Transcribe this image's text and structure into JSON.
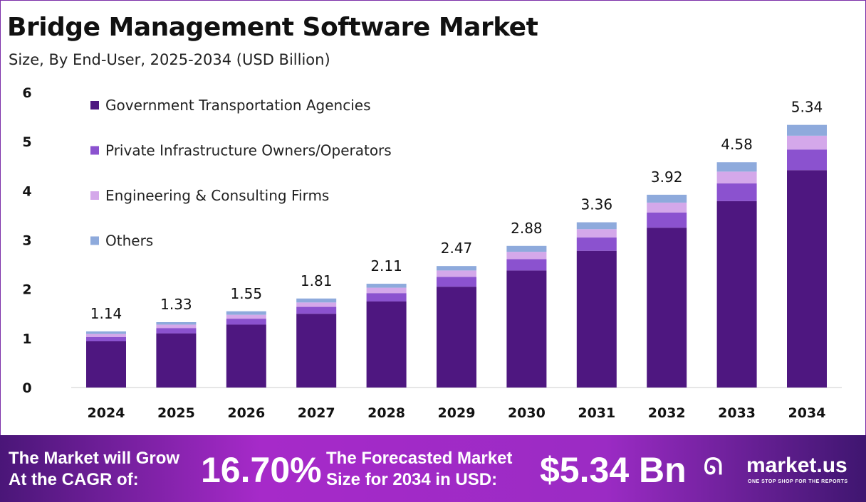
{
  "title": "Bridge Management Software Market",
  "subtitle": "Size, By End-User, 2025-2034 (USD Billion)",
  "chart_data": {
    "type": "bar",
    "stacked": true,
    "categories": [
      "2024",
      "2025",
      "2026",
      "2027",
      "2028",
      "2029",
      "2030",
      "2031",
      "2032",
      "2033",
      "2034"
    ],
    "totals": [
      "1.14",
      "1.33",
      "1.55",
      "1.81",
      "2.11",
      "2.47",
      "2.88",
      "3.36",
      "3.92",
      "4.58",
      "5.34"
    ],
    "series": [
      {
        "name": "Government Transportation Agencies",
        "color": "#4e1780",
        "values": [
          0.94,
          1.1,
          1.28,
          1.5,
          1.75,
          2.05,
          2.38,
          2.78,
          3.25,
          3.79,
          4.42
        ]
      },
      {
        "name": "Private Infrastructure Owners/Operators",
        "color": "#8b52cf",
        "values": [
          0.09,
          0.11,
          0.12,
          0.14,
          0.17,
          0.2,
          0.23,
          0.27,
          0.31,
          0.36,
          0.42
        ]
      },
      {
        "name": "Engineering & Consulting Firms",
        "color": "#d4a8ea",
        "values": [
          0.06,
          0.07,
          0.08,
          0.09,
          0.11,
          0.13,
          0.15,
          0.17,
          0.2,
          0.24,
          0.28
        ]
      },
      {
        "name": "Others",
        "color": "#8eaadc",
        "values": [
          0.05,
          0.05,
          0.07,
          0.08,
          0.08,
          0.09,
          0.12,
          0.14,
          0.16,
          0.19,
          0.22
        ]
      }
    ],
    "yticks": [
      "0",
      "1",
      "2",
      "3",
      "4",
      "5",
      "6"
    ],
    "ylim": [
      0,
      6
    ],
    "grid": false,
    "legend": "top-left"
  },
  "footer": {
    "cagr_label_1": "The Market will Grow",
    "cagr_label_2": "At the CAGR of:",
    "cagr_value": "16.70%",
    "forecast_label_1": "The Forecasted Market",
    "forecast_label_2": "Size for 2034 in USD:",
    "forecast_value": "$5.34 Bn",
    "brand": "market.us",
    "tagline": "ONE STOP SHOP FOR THE REPORTS"
  }
}
